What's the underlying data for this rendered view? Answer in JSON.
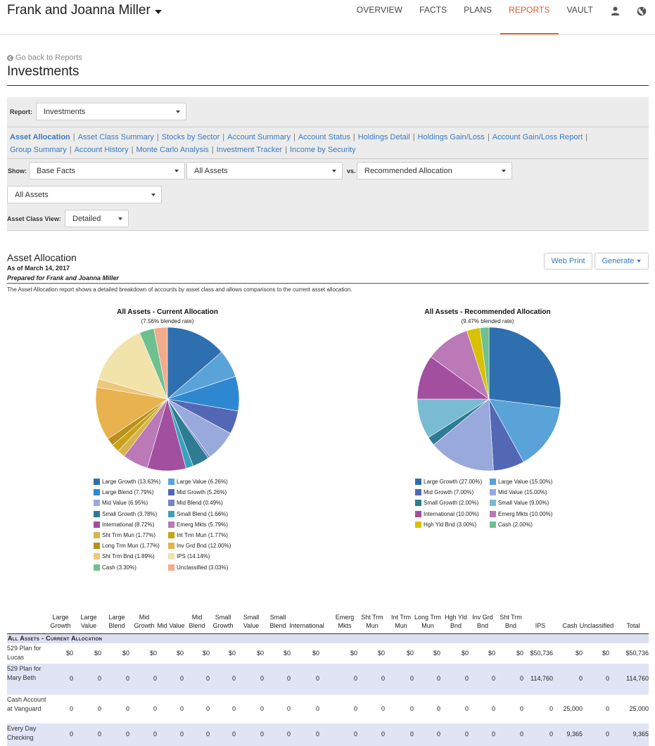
{
  "header": {
    "client_name": "Frank and Joanna Miller",
    "nav": [
      "OVERVIEW",
      "FACTS",
      "PLANS",
      "REPORTS",
      "VAULT"
    ],
    "active_nav": "REPORTS"
  },
  "page": {
    "back_link": "Go back to Reports",
    "title": "Investments"
  },
  "filters": {
    "report_label": "Report:",
    "report_value": "Investments",
    "report_links": [
      "Asset Allocation",
      "Asset Class Summary",
      "Stocks by Sector",
      "Account Summary",
      "Account Status",
      "Holdings Detail",
      "Holdings Gain/Loss",
      "Account Gain/Loss Report",
      "Group Summary",
      "Account History",
      "Monte Carlo Analysis",
      "Investment Tracker",
      "Income by Security"
    ],
    "active_link": "Asset Allocation",
    "show_label": "Show:",
    "show_value": "Base Facts",
    "assets_value": "All Assets",
    "vs_label": "vs.",
    "vs_value": "Recommended Allocation",
    "assets2_value": "All Assets",
    "view_label": "Asset Class View:",
    "view_value": "Detailed"
  },
  "report": {
    "title": "Asset Allocation",
    "date": "As of March 14, 2017",
    "prepared": "Prepared for Frank and Joanna Miller",
    "description": "The Asset Allocation report shows a detailed breakdown of accounts by asset class and allows comparisons to the current asset allocation.",
    "web_print": "Web Print",
    "generate": "Generate"
  },
  "colors": {
    "accent": "#e05a2b",
    "link": "#3a79c0"
  },
  "chart_data": [
    {
      "type": "pie",
      "title": "All Assets - Current Allocation",
      "subtitle": "(7.56% blended rate)",
      "slices": [
        {
          "label": "Large Growth (13.63%)",
          "value": 13.63,
          "color": "#2e6faf"
        },
        {
          "label": "Large Value (6.26%)",
          "value": 6.26,
          "color": "#5aa3d8"
        },
        {
          "label": "Large Blend (7.79%)",
          "value": 7.79,
          "color": "#2f88cf"
        },
        {
          "label": "Mid Growth (5.26%)",
          "value": 5.26,
          "color": "#5368b5"
        },
        {
          "label": "Mid Value (6.95%)",
          "value": 6.95,
          "color": "#9aa9dc"
        },
        {
          "label": "Mid Blend (0.49%)",
          "value": 0.49,
          "color": "#7484c7"
        },
        {
          "label": "Small Growth (3.78%)",
          "value": 3.78,
          "color": "#2e7c94"
        },
        {
          "label": "Small Blend (1.66%)",
          "value": 1.66,
          "color": "#3aa1bd"
        },
        {
          "label": "International (8.72%)",
          "value": 8.72,
          "color": "#a24f9f"
        },
        {
          "label": "Emerg Mkts (5.79%)",
          "value": 5.79,
          "color": "#bb79b8"
        },
        {
          "label": "Sht Trm Mun (1.77%)",
          "value": 1.77,
          "color": "#d6b54c"
        },
        {
          "label": "Int Trm Mun (1.77%)",
          "value": 1.77,
          "color": "#c9a21a"
        },
        {
          "label": "Long Trm Mun (1.77%)",
          "value": 1.77,
          "color": "#b8901b"
        },
        {
          "label": "Inv Grd Bnd (12.00%)",
          "value": 12.0,
          "color": "#e8b24f"
        },
        {
          "label": "Sht Trm Bnd (1.89%)",
          "value": 1.89,
          "color": "#edc77c"
        },
        {
          "label": "IPS (14.14%)",
          "value": 14.14,
          "color": "#f2e3ab"
        },
        {
          "label": "Cash (3.30%)",
          "value": 3.3,
          "color": "#6fc08f"
        },
        {
          "label": "Unclassified (3.03%)",
          "value": 3.03,
          "color": "#f2ab8b"
        }
      ]
    },
    {
      "type": "pie",
      "title": "All Assets - Recommended Allocation",
      "subtitle": "(9.47% blended rate)",
      "slices": [
        {
          "label": "Large Growth (27.00%)",
          "value": 27.0,
          "color": "#2e6faf"
        },
        {
          "label": "Large Value (15.00%)",
          "value": 15.0,
          "color": "#5aa3d8"
        },
        {
          "label": "Mid Growth (7.00%)",
          "value": 7.0,
          "color": "#5368b5"
        },
        {
          "label": "Mid Value (15.00%)",
          "value": 15.0,
          "color": "#9aa9dc"
        },
        {
          "label": "Small Growth (2.00%)",
          "value": 2.0,
          "color": "#2e7c94"
        },
        {
          "label": "Small Value (9.00%)",
          "value": 9.0,
          "color": "#79bcd2"
        },
        {
          "label": "International (10.00%)",
          "value": 10.0,
          "color": "#a24f9f"
        },
        {
          "label": "Emerg Mkts (10.00%)",
          "value": 10.0,
          "color": "#bb79b8"
        },
        {
          "label": "Hgh Yld Bnd (3.00%)",
          "value": 3.0,
          "color": "#d8c200"
        },
        {
          "label": "Cash (2.00%)",
          "value": 2.0,
          "color": "#6fc08f"
        }
      ]
    }
  ],
  "table": {
    "columns": [
      "Large Growth",
      "Large Value",
      "Large Blend",
      "Mid Growth",
      "Mid Value",
      "Mid Blend",
      "Small Growth",
      "Small Value",
      "Small Blend",
      "International",
      "Emerg Mkts",
      "Sht Trm Mun",
      "Int Trm Mun",
      "Long Trm Mun",
      "Hgh Yld Bnd",
      "Inv Grd Bnd",
      "Sht Trm Bnd",
      "IPS",
      "Cash",
      "Unclassified",
      "Total"
    ],
    "section": "All Assets - Current Allocation",
    "rows": [
      {
        "name": "529 Plan for Lucas",
        "values": [
          "$0",
          "$0",
          "$0",
          "$0",
          "$0",
          "$0",
          "$0",
          "$0",
          "$0",
          "$0",
          "$0",
          "$0",
          "$0",
          "$0",
          "$0",
          "$0",
          "$0",
          "$50,736",
          "$0",
          "$0",
          "$50,736"
        ]
      },
      {
        "name": "529 Plan for Mary Beth",
        "values": [
          "0",
          "0",
          "0",
          "0",
          "0",
          "0",
          "0",
          "0",
          "0",
          "0",
          "0",
          "0",
          "0",
          "0",
          "0",
          "0",
          "0",
          "114,760",
          "0",
          "0",
          "114,760"
        ]
      },
      {
        "name": "Cash Account at Vanguard",
        "values": [
          "0",
          "0",
          "0",
          "0",
          "0",
          "0",
          "0",
          "0",
          "0",
          "0",
          "0",
          "0",
          "0",
          "0",
          "0",
          "0",
          "0",
          "0",
          "25,000",
          "0",
          "25,000"
        ]
      },
      {
        "name": "Every Day Checking",
        "values": [
          "0",
          "0",
          "0",
          "0",
          "0",
          "0",
          "0",
          "0",
          "0",
          "0",
          "0",
          "0",
          "0",
          "0",
          "0",
          "0",
          "0",
          "0",
          "9,365",
          "0",
          "9,365"
        ]
      }
    ]
  }
}
